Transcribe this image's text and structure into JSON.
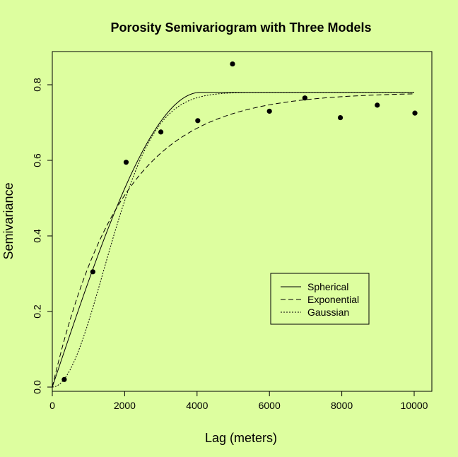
{
  "colors": {
    "background": "#ddfe9f",
    "ink": "#000000"
  },
  "chart_data": {
    "type": "scatter",
    "title": "Porosity Semivariogram with Three Models",
    "xlabel": "Lag (meters)",
    "ylabel": "Semivariance",
    "xlim": [
      0,
      10400
    ],
    "ylim": [
      0,
      0.87
    ],
    "x_ticks": [
      0,
      2000,
      4000,
      6000,
      8000,
      10000
    ],
    "x_tick_labels": [
      "0",
      "2000",
      "4000",
      "6000",
      "8000",
      "10000"
    ],
    "y_ticks": [
      0.0,
      0.2,
      0.4,
      0.6,
      0.8
    ],
    "y_tick_labels": [
      "0.0",
      "0.2",
      "0.4",
      "0.6",
      "0.8"
    ],
    "grid": false,
    "legend_position": "bottom-right",
    "points": {
      "x": [
        330,
        1120,
        2040,
        3000,
        4020,
        4980,
        6000,
        6980,
        7960,
        8980,
        10020
      ],
      "y": [
        0.02,
        0.305,
        0.595,
        0.675,
        0.705,
        0.855,
        0.73,
        0.765,
        0.713,
        0.746,
        0.725
      ]
    },
    "models": [
      {
        "name": "Spherical",
        "type": "spherical",
        "sill": 0.78,
        "range": 4100,
        "dash": ""
      },
      {
        "name": "Exponential",
        "type": "exponential",
        "sill": 0.78,
        "range": 1900,
        "dash": "7,4"
      },
      {
        "name": "Gaussian",
        "type": "gaussian",
        "sill": 0.78,
        "range": 2000,
        "dash": "2,2"
      }
    ]
  }
}
